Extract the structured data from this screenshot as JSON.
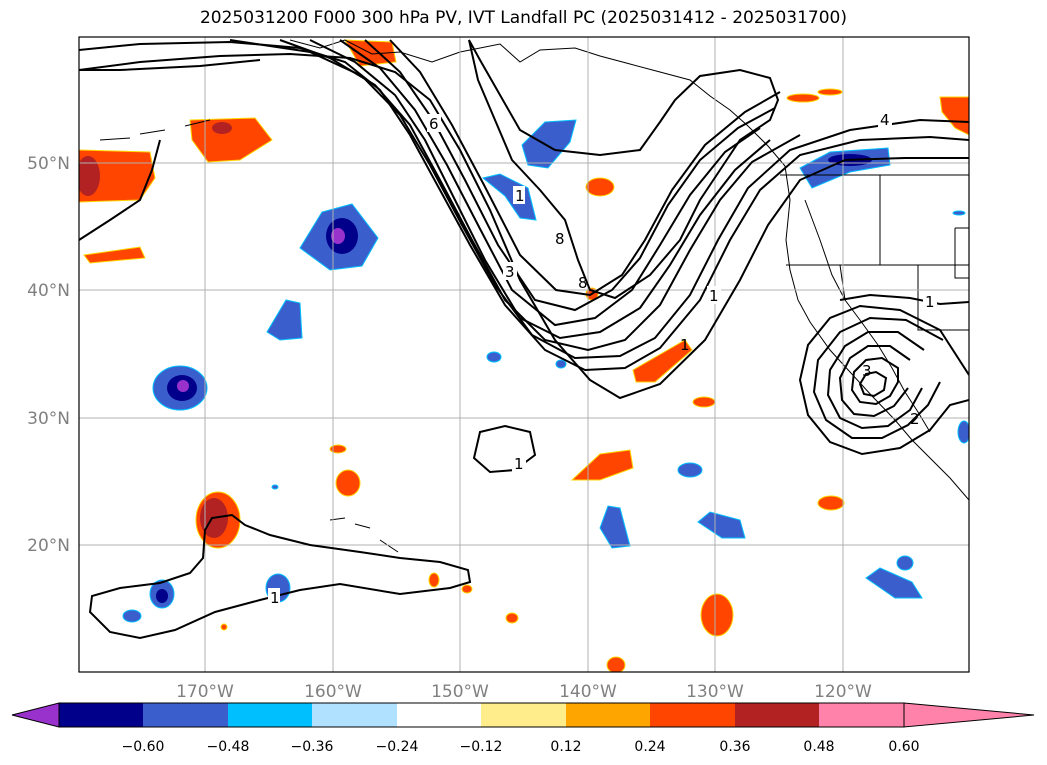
{
  "title": "2025031200 F000 300 hPa PV, IVT Landfall PC (2025031412 - 2025031700)",
  "map": {
    "lon_labels": [
      "170°W",
      "160°W",
      "150°W",
      "140°W",
      "130°W",
      "120°W"
    ],
    "lat_labels": [
      "50°N",
      "40°N",
      "30°N",
      "20°N"
    ],
    "contour_labels": [
      "6",
      "4",
      "1",
      "8",
      "8",
      "3",
      "1",
      "1",
      "1",
      "1",
      "1",
      "3",
      "2"
    ]
  },
  "colorbar": {
    "ticks": [
      "−0.60",
      "−0.48",
      "−0.36",
      "−0.24",
      "−0.12",
      "0.12",
      "0.24",
      "0.36",
      "0.48",
      "0.60"
    ],
    "colors": [
      "#9932CC",
      "#00008B",
      "#3A5FCD",
      "#00BFFF",
      "#B0E2FF",
      "#FFFFFF",
      "#FFEC8B",
      "#FFA500",
      "#FF4500",
      "#B22222",
      "#FF82AB"
    ]
  }
}
